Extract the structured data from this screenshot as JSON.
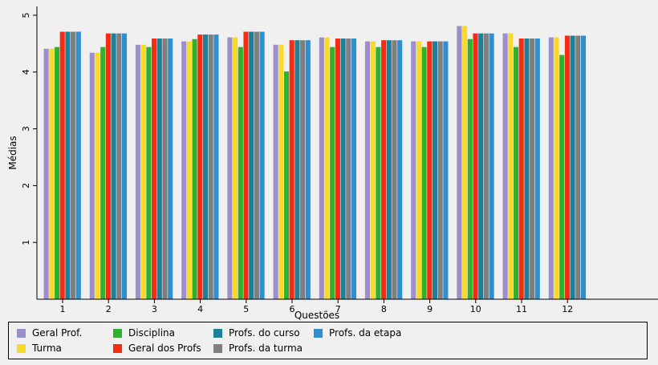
{
  "chart_data": {
    "type": "bar",
    "title": "",
    "xlabel": "Questões",
    "ylabel": "Médias",
    "ylim": [
      0,
      5
    ],
    "yticks": [
      1,
      2,
      3,
      4,
      5
    ],
    "grid": false,
    "legend_position": "bottom",
    "categories": [
      "1",
      "2",
      "3",
      "4",
      "5",
      "6",
      "7",
      "8",
      "9",
      "10",
      "11",
      "12"
    ],
    "series": [
      {
        "name": "Geral Prof.",
        "color": "#9b8fcc",
        "values": [
          4.41,
          4.34,
          4.48,
          4.54,
          4.61,
          4.48,
          4.61,
          4.54,
          4.54,
          4.81,
          4.68,
          4.61
        ]
      },
      {
        "name": "Turma",
        "color": "#f9d92b",
        "values": [
          4.41,
          4.34,
          4.48,
          4.54,
          4.61,
          4.48,
          4.61,
          4.54,
          4.54,
          4.81,
          4.68,
          4.61
        ]
      },
      {
        "name": "Disciplina",
        "color": "#2fb12f",
        "values": [
          4.44,
          4.44,
          4.44,
          4.58,
          4.44,
          4.01,
          4.44,
          4.44,
          4.44,
          4.58,
          4.44,
          4.3
        ]
      },
      {
        "name": "Geral dos Profs",
        "color": "#f52c12",
        "values": [
          4.71,
          4.68,
          4.59,
          4.66,
          4.71,
          4.56,
          4.59,
          4.56,
          4.54,
          4.68,
          4.59,
          4.64
        ]
      },
      {
        "name": "Profs. do curso",
        "color": "#1e7f98",
        "values": [
          4.71,
          4.68,
          4.59,
          4.66,
          4.71,
          4.56,
          4.59,
          4.56,
          4.54,
          4.68,
          4.59,
          4.64
        ]
      },
      {
        "name": "Profs. da turma",
        "color": "#7f7f7f",
        "values": [
          4.71,
          4.68,
          4.59,
          4.66,
          4.71,
          4.56,
          4.59,
          4.56,
          4.54,
          4.68,
          4.59,
          4.64
        ]
      },
      {
        "name": "Profs. da etapa",
        "color": "#2f8fd1",
        "values": [
          4.71,
          4.68,
          4.59,
          4.66,
          4.71,
          4.56,
          4.59,
          4.56,
          4.54,
          4.68,
          4.59,
          4.64
        ]
      }
    ]
  }
}
